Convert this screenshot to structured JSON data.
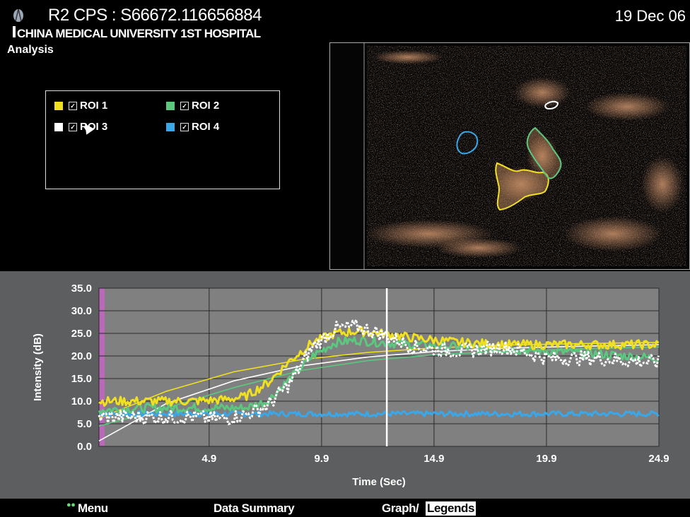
{
  "header": {
    "title": "R2 CPS : S66672.116656884",
    "subtitle": "CHINA MEDICAL UNIVERSITY 1ST HOSPITAL",
    "date": "19 Dec 06"
  },
  "panel_label": "Analysis",
  "legend": [
    {
      "label": "ROI 1",
      "color": "#f0e020",
      "checked": true
    },
    {
      "label": "ROI 2",
      "color": "#5cc77e",
      "checked": true
    },
    {
      "label": "ROI 3",
      "color": "#ffffff",
      "checked": true
    },
    {
      "label": "ROI 4",
      "color": "#3aa7e8",
      "checked": true
    }
  ],
  "bottom_menu": {
    "menu": "Menu",
    "data_summary": "Data Summary",
    "graph": "Graph/",
    "legends": "Legends"
  },
  "chart_data": {
    "type": "line",
    "xlabel": "Time (Sec)",
    "ylabel": "Intensity (dB)",
    "xlim": [
      0,
      24.9
    ],
    "ylim": [
      0,
      35
    ],
    "xticks": [
      "4.9",
      "9.9",
      "14.9",
      "19.9",
      "24.9"
    ],
    "yticks": [
      "0.0",
      "5.0",
      "10.0",
      "15.0",
      "20.0",
      "25.0",
      "30.0",
      "35.0"
    ],
    "grid": true,
    "cursor_x": 12.8,
    "series": [
      {
        "name": "ROI 1",
        "color": "#f0e020",
        "x": [
          0,
          2,
          4,
          5.5,
          6.5,
          7.5,
          8.5,
          9.5,
          10.5,
          11.5,
          12.5,
          14,
          16,
          18,
          20,
          22,
          24.9
        ],
        "values": [
          10,
          10,
          10,
          10.3,
          11,
          14,
          19,
          23,
          25,
          25.5,
          25,
          24,
          23,
          22.5,
          22.5,
          22.5,
          22.5
        ]
      },
      {
        "name": "ROI 2",
        "color": "#5cc77e",
        "x": [
          0,
          2,
          4,
          5.5,
          6.5,
          7.5,
          8.5,
          9.5,
          10.5,
          11.5,
          12.5,
          14,
          16,
          18,
          20,
          22,
          24.9
        ],
        "values": [
          8,
          8.5,
          8.5,
          8.5,
          8.5,
          10,
          15,
          20,
          23,
          23.5,
          23,
          22.5,
          22,
          21.5,
          21,
          20.5,
          19.5
        ]
      },
      {
        "name": "ROI 3",
        "color": "#ffffff",
        "x": [
          0,
          2,
          4,
          5.5,
          6.5,
          7.5,
          8.5,
          9.5,
          10.5,
          11.5,
          12.5,
          14,
          16,
          18,
          20,
          22,
          24.9
        ],
        "values": [
          6.5,
          6.5,
          6.5,
          6,
          7,
          9,
          14,
          22,
          26,
          26.5,
          25,
          22,
          21,
          22,
          19.5,
          19.5,
          18.5
        ]
      },
      {
        "name": "ROI 4",
        "color": "#3aa7e8",
        "x": [
          0,
          4,
          8,
          12,
          16,
          20,
          24.9
        ],
        "values": [
          7.2,
          7.2,
          7.2,
          7.2,
          7.2,
          7.2,
          7.2
        ]
      }
    ],
    "fit_curves": [
      {
        "color": "#f0e020",
        "x": [
          0,
          3,
          6,
          9,
          12,
          15,
          18,
          21,
          24.9
        ],
        "values": [
          6.2,
          12.2,
          16.5,
          19.2,
          20.8,
          21.8,
          22.4,
          22.7,
          23
        ]
      },
      {
        "color": "#5cc77e",
        "x": [
          0,
          3,
          6,
          9,
          12,
          15,
          18,
          21,
          24.9
        ],
        "values": [
          4.5,
          8.5,
          13,
          16.8,
          19,
          20.3,
          21,
          21.5,
          22
        ]
      },
      {
        "color": "#ffffff",
        "x": [
          0,
          3,
          6,
          9,
          12,
          15,
          18,
          21,
          24.9
        ],
        "values": [
          1.2,
          9.5,
          14.5,
          17.8,
          19.8,
          21,
          21.7,
          22.1,
          22.5
        ]
      }
    ]
  }
}
